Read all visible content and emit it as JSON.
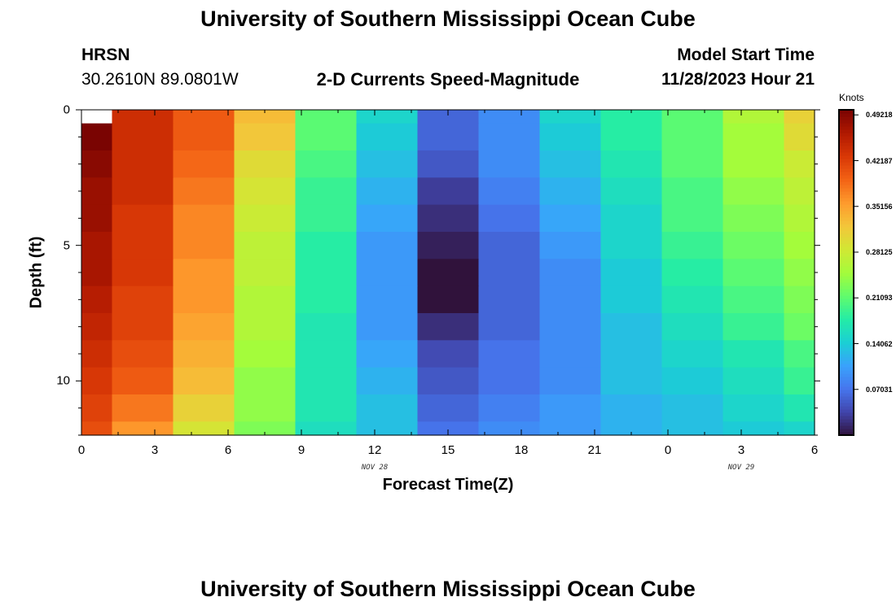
{
  "page": {
    "title_top": "University of Southern Mississippi Ocean Cube",
    "title_bottom": "University of Southern Mississippi Ocean Cube",
    "station": "HRSN",
    "location": "30.2610N  89.0801W",
    "subtitle": "2-D Currents Speed-Magnitude",
    "model_start_label": "Model Start Time",
    "model_start_value": "11/28/2023 Hour 21"
  },
  "chart_data": {
    "type": "heatmap",
    "title": "2-D Currents Speed-Magnitude",
    "xlabel": "Forecast Time(Z)",
    "ylabel": "Depth (ft)",
    "x_ticks": [
      "0",
      "3",
      "6",
      "9",
      "12",
      "15",
      "18",
      "21",
      "0",
      "3",
      "6"
    ],
    "x_range_hours": [
      0,
      30
    ],
    "y_ticks": [
      "0",
      "5",
      "10"
    ],
    "y_range_ft": [
      0,
      12
    ],
    "date_labels": [
      {
        "text": "NOV 28",
        "hour": 12
      },
      {
        "text": "NOV 29",
        "hour": 27
      }
    ],
    "colorbar": {
      "label": "Knots",
      "min": 0,
      "max": 0.5,
      "tick_labels": [
        "0.49218",
        "0.42187",
        "0.35156",
        "0.28125",
        "0.21093",
        "0.14062",
        "0.07031"
      ],
      "tick_values": [
        0.49218,
        0.42187,
        0.35156,
        0.28125,
        0.21093,
        0.14062,
        0.07031
      ]
    },
    "col_edges_hours": [
      0,
      1.25,
      3.75,
      6.25,
      8.75,
      11.25,
      13.75,
      16.25,
      18.75,
      21.25,
      23.75,
      26.25,
      28.75,
      30
    ],
    "row_edges_ft": [
      0,
      0.5,
      1.5,
      2.5,
      3.5,
      4.5,
      5.5,
      6.5,
      7.5,
      8.5,
      9.5,
      10.5,
      11.5,
      12
    ],
    "values": [
      [
        null,
        0.44,
        0.4,
        0.33,
        0.21,
        0.15,
        0.06,
        0.09,
        0.15,
        0.18,
        0.21,
        0.26,
        0.31
      ],
      [
        0.5,
        0.44,
        0.4,
        0.32,
        0.21,
        0.14,
        0.06,
        0.09,
        0.14,
        0.18,
        0.21,
        0.25,
        0.3
      ],
      [
        0.49,
        0.44,
        0.39,
        0.3,
        0.2,
        0.13,
        0.05,
        0.09,
        0.13,
        0.17,
        0.21,
        0.25,
        0.28
      ],
      [
        0.48,
        0.44,
        0.38,
        0.29,
        0.19,
        0.12,
        0.03,
        0.08,
        0.12,
        0.16,
        0.2,
        0.24,
        0.27
      ],
      [
        0.48,
        0.43,
        0.37,
        0.28,
        0.19,
        0.11,
        0.02,
        0.07,
        0.11,
        0.15,
        0.2,
        0.23,
        0.26
      ],
      [
        0.47,
        0.43,
        0.37,
        0.27,
        0.18,
        0.1,
        0.01,
        0.06,
        0.1,
        0.15,
        0.19,
        0.22,
        0.25
      ],
      [
        0.47,
        0.43,
        0.36,
        0.27,
        0.18,
        0.1,
        0.0,
        0.06,
        0.09,
        0.14,
        0.18,
        0.21,
        0.24
      ],
      [
        0.46,
        0.42,
        0.36,
        0.26,
        0.18,
        0.1,
        0.0,
        0.06,
        0.09,
        0.14,
        0.17,
        0.2,
        0.23
      ],
      [
        0.45,
        0.42,
        0.35,
        0.26,
        0.17,
        0.1,
        0.02,
        0.06,
        0.09,
        0.13,
        0.16,
        0.19,
        0.22
      ],
      [
        0.44,
        0.41,
        0.34,
        0.25,
        0.17,
        0.11,
        0.04,
        0.07,
        0.09,
        0.13,
        0.15,
        0.17,
        0.2
      ],
      [
        0.43,
        0.4,
        0.33,
        0.24,
        0.17,
        0.12,
        0.05,
        0.07,
        0.09,
        0.13,
        0.14,
        0.16,
        0.19
      ],
      [
        0.42,
        0.38,
        0.31,
        0.24,
        0.17,
        0.13,
        0.06,
        0.08,
        0.1,
        0.12,
        0.13,
        0.15,
        0.17
      ],
      [
        0.41,
        0.36,
        0.29,
        0.23,
        0.16,
        0.13,
        0.07,
        0.09,
        0.1,
        0.12,
        0.13,
        0.14,
        0.15
      ]
    ],
    "colormap": [
      "#30123b",
      "#4145ab",
      "#4675ed",
      "#39a2fc",
      "#1bcfd4",
      "#24eca6",
      "#61fc6c",
      "#a4fc3b",
      "#d1e834",
      "#f3c63a",
      "#fe9b2d",
      "#f36315",
      "#d93806",
      "#b11901",
      "#7a0402"
    ]
  }
}
